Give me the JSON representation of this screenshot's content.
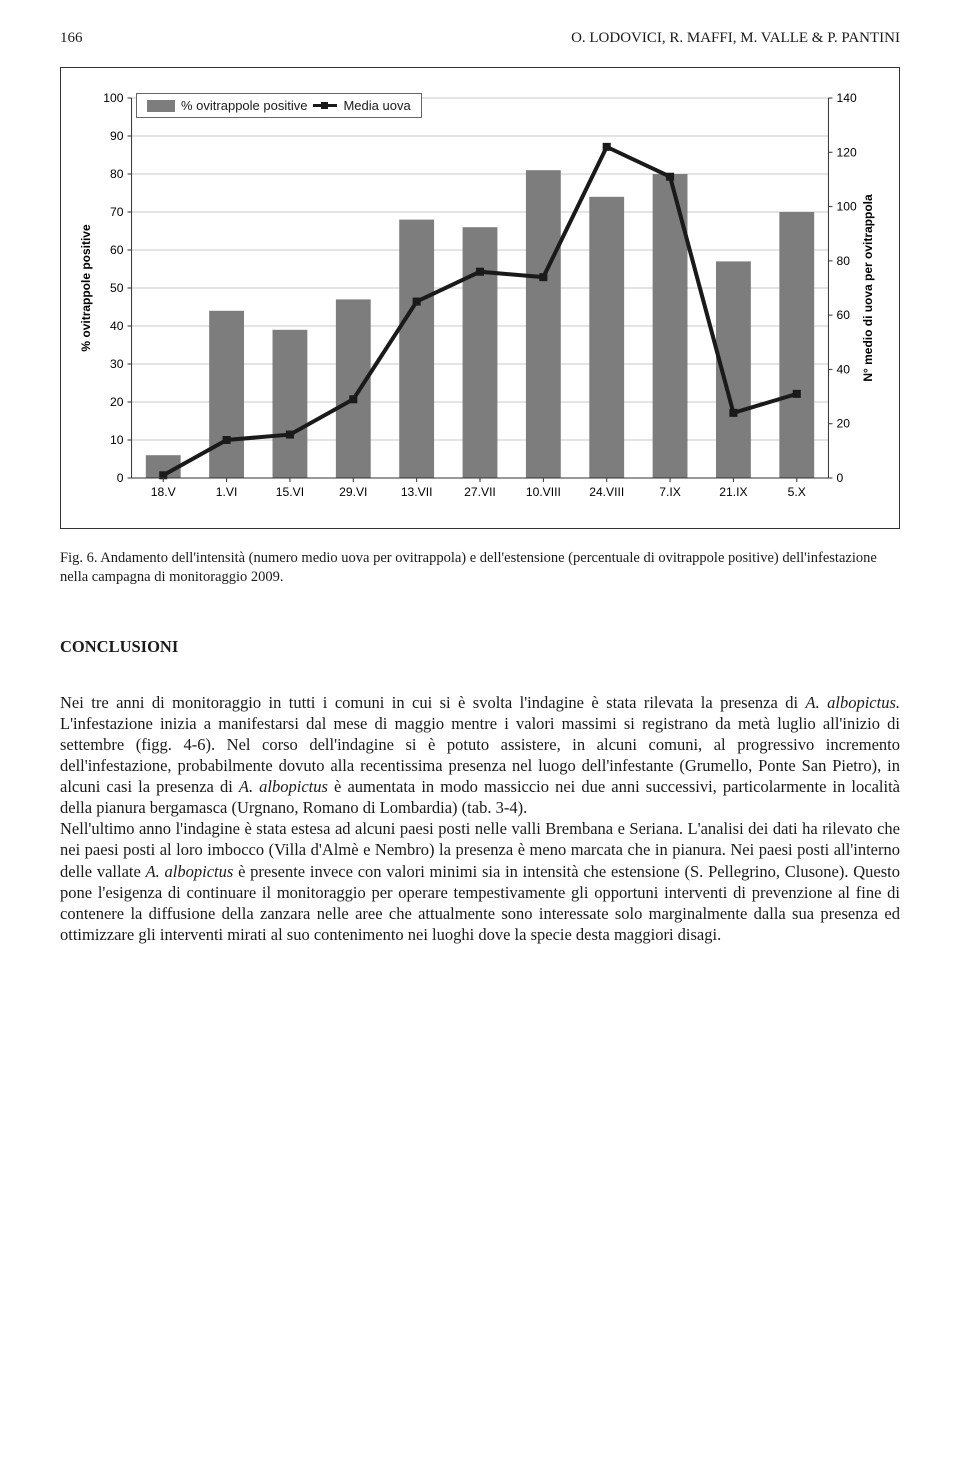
{
  "header": {
    "page_number": "166",
    "authors": "O. LODOVICI, R. MAFFI, M. VALLE & P. PANTINI"
  },
  "chart": {
    "type": "bar_line_combo",
    "legend": {
      "bar_label": "% ovitrappole positive",
      "line_label": "Media uova"
    },
    "y_left": {
      "label": "% ovitrappole positive",
      "min": 0,
      "max": 100,
      "step": 10,
      "ticks": [
        "0",
        "10",
        "20",
        "30",
        "40",
        "50",
        "60",
        "70",
        "80",
        "90",
        "100"
      ]
    },
    "y_right": {
      "label": "N° medio di uova per ovitrappola",
      "min": 0,
      "max": 140,
      "step": 20,
      "ticks": [
        "0",
        "20",
        "40",
        "60",
        "80",
        "100",
        "120",
        "140"
      ]
    },
    "categories": [
      "18.V",
      "1.VI",
      "15.VI",
      "29.VI",
      "13.VII",
      "27.VII",
      "10.VIII",
      "24.VIII",
      "7.IX",
      "21.IX",
      "5.X"
    ],
    "bar_values": [
      6,
      44,
      39,
      47,
      68,
      66,
      81,
      74,
      80,
      57,
      70
    ],
    "line_values": [
      1,
      14,
      16,
      29,
      65,
      76,
      74,
      122,
      111,
      24,
      31
    ],
    "bar_color": "#7d7d7d",
    "line_color": "#1a1a1a",
    "grid_color": "#c9c9c9",
    "axis_color": "#333333",
    "background": "#ffffff",
    "bar_width": 0.55,
    "marker_size": 8,
    "line_width": 4,
    "font_family": "Arial, sans-serif",
    "tick_fontsize": 12,
    "axis_label_fontsize": 12
  },
  "caption": {
    "label": "Fig. 6.",
    "text": "Andamento dell'intensità (numero medio uova per ovitrappola) e dell'estensione (percentuale di ovitrappole positive) dell'infestazione nella campagna di monitoraggio 2009."
  },
  "section_title": "CONCLUSIONI",
  "body": "Nei tre anni di monitoraggio in tutti i comuni in cui si è svolta l'indagine è stata rilevata la presenza di <i>A. albopictus.</i> L'infestazione inizia a manifestarsi dal mese di maggio mentre i valori massimi si registrano da metà luglio all'inizio di settembre (figg. 4-6). Nel corso dell'indagine si è potuto assistere, in alcuni comuni, al progressivo incremento dell'infestazione, probabilmente dovuto alla recentissima presenza nel luogo dell'infestante (Grumello, Ponte San Pietro), in alcuni casi la presenza di <i>A. albopictus</i> è aumentata in modo massiccio nei due anni successivi, particolarmente in località della pianura bergamasca (Urgnano, Romano di Lombardia) (tab. 3-4).<br>Nell'ultimo anno l'indagine è stata estesa ad alcuni paesi posti nelle valli Brembana e Seriana. L'analisi dei dati ha rilevato che nei paesi posti al loro imbocco (Villa d'Almè e Nembro) la presenza è meno marcata che in pianura. Nei paesi posti all'interno delle vallate <i>A. albopictus</i> è presente invece con valori minimi sia in intensità che estensione (S. Pellegrino, Clusone). Questo pone l'esigenza di continuare il monitoraggio per operare tempestivamente gli opportuni interventi di prevenzione al fine di contenere la diffusione della zanzara nelle aree che attualmente sono interessate solo marginalmente dalla sua presenza ed ottimizzare gli interventi mirati al suo contenimento nei luoghi dove la specie desta maggiori disagi."
}
